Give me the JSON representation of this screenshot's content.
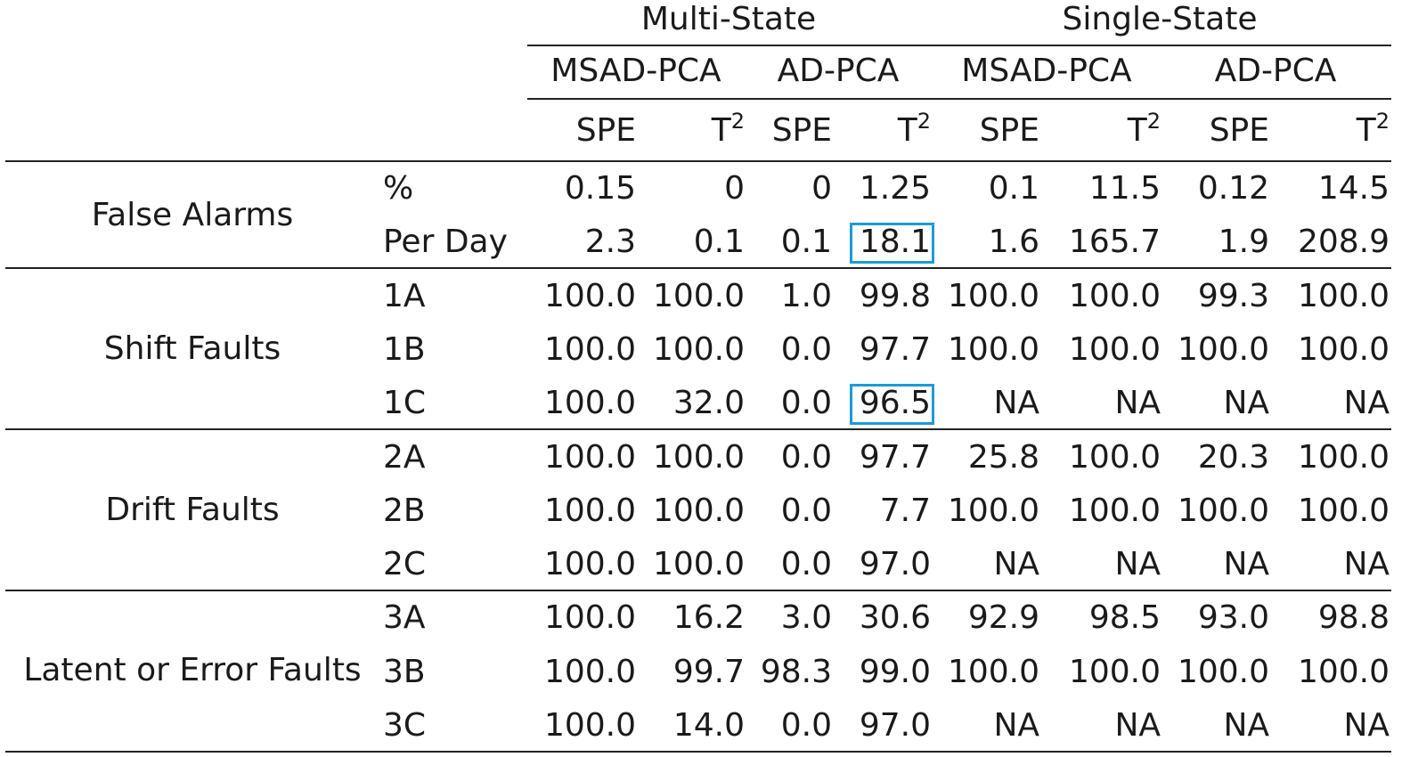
{
  "groups": [
    {
      "label": "Multi-State"
    },
    {
      "label": "Single-State"
    }
  ],
  "methods": [
    "MSAD-PCA",
    "AD-PCA",
    "MSAD-PCA",
    "AD-PCA"
  ],
  "stats": {
    "spe": "SPE",
    "t2_base": "T",
    "t2_exp": "2"
  },
  "sections": [
    {
      "label": "False Alarms",
      "rows": [
        {
          "label": "%",
          "values": [
            "0.15",
            "0",
            "0",
            "1.25",
            "0.1",
            "11.5",
            "0.12",
            "14.5"
          ]
        },
        {
          "label": "Per Day",
          "values": [
            "2.3",
            "0.1",
            "0.1",
            "18.1",
            "1.6",
            "165.7",
            "1.9",
            "208.9"
          ]
        }
      ]
    },
    {
      "label": "Shift Faults",
      "rows": [
        {
          "label": "1A",
          "values": [
            "100.0",
            "100.0",
            "1.0",
            "99.8",
            "100.0",
            "100.0",
            "99.3",
            "100.0"
          ]
        },
        {
          "label": "1B",
          "values": [
            "100.0",
            "100.0",
            "0.0",
            "97.7",
            "100.0",
            "100.0",
            "100.0",
            "100.0"
          ]
        },
        {
          "label": "1C",
          "values": [
            "100.0",
            "32.0",
            "0.0",
            "96.5",
            "NA",
            "NA",
            "NA",
            "NA"
          ]
        }
      ]
    },
    {
      "label": "Drift Faults",
      "rows": [
        {
          "label": "2A",
          "values": [
            "100.0",
            "100.0",
            "0.0",
            "97.7",
            "25.8",
            "100.0",
            "20.3",
            "100.0"
          ]
        },
        {
          "label": "2B",
          "values": [
            "100.0",
            "100.0",
            "0.0",
            "7.7",
            "100.0",
            "100.0",
            "100.0",
            "100.0"
          ]
        },
        {
          "label": "2C",
          "values": [
            "100.0",
            "100.0",
            "0.0",
            "97.0",
            "NA",
            "NA",
            "NA",
            "NA"
          ]
        }
      ]
    },
    {
      "label": "Latent or Error Faults",
      "rows": [
        {
          "label": "3A",
          "values": [
            "100.0",
            "16.2",
            "3.0",
            "30.6",
            "92.9",
            "98.5",
            "93.0",
            "98.8"
          ]
        },
        {
          "label": "3B",
          "values": [
            "100.0",
            "99.7",
            "98.3",
            "99.0",
            "100.0",
            "100.0",
            "100.0",
            "100.0"
          ]
        },
        {
          "label": "3C",
          "values": [
            "100.0",
            "14.0",
            "0.0",
            "97.0",
            "NA",
            "NA",
            "NA",
            "NA"
          ]
        }
      ]
    }
  ],
  "highlights": [
    {
      "section": 0,
      "row": 1,
      "col": 3
    },
    {
      "section": 1,
      "row": 2,
      "col": 3
    }
  ],
  "highlight_color": "#1e9ad6"
}
